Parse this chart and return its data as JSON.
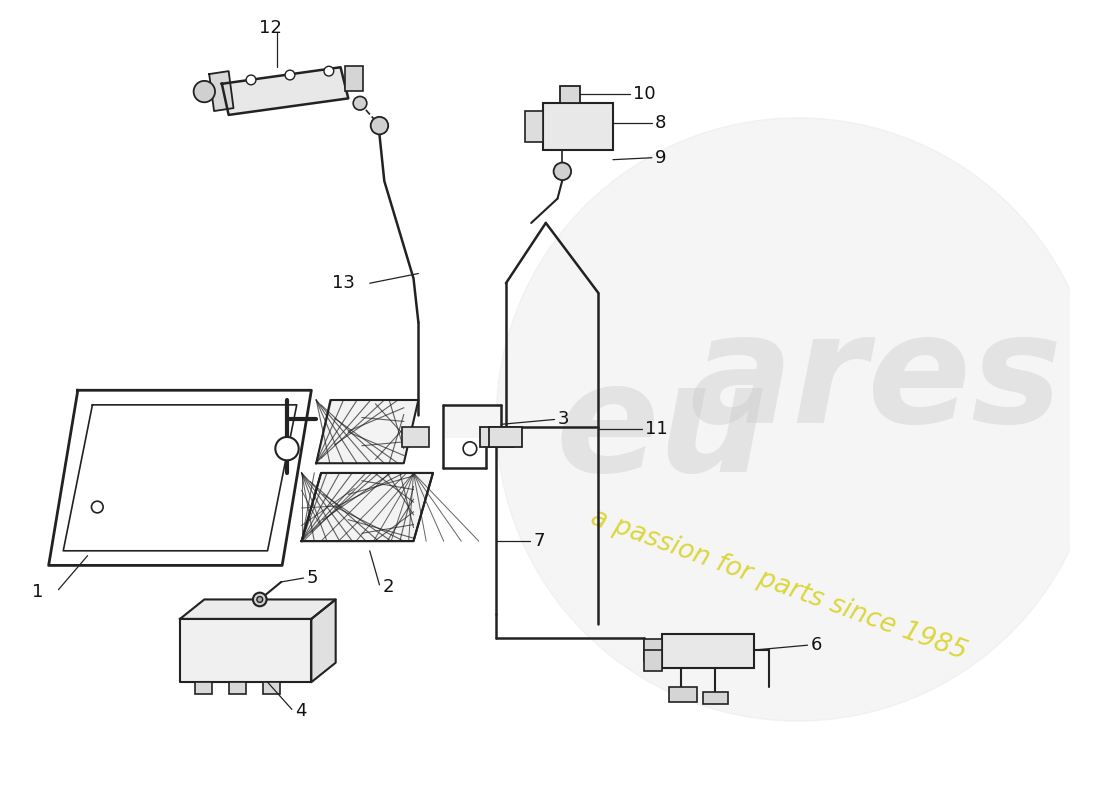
{
  "background_color": "#ffffff",
  "line_color": "#222222",
  "watermark_circle_color": "#e0e0e0",
  "watermark_text1": "eu",
  "watermark_text2": "ares",
  "watermark_text3": "a passion for parts since 1985",
  "watermark_color1": "#c8c8c8",
  "watermark_color2": "#d4cc00",
  "figsize": [
    11.0,
    8.0
  ],
  "dpi": 100
}
